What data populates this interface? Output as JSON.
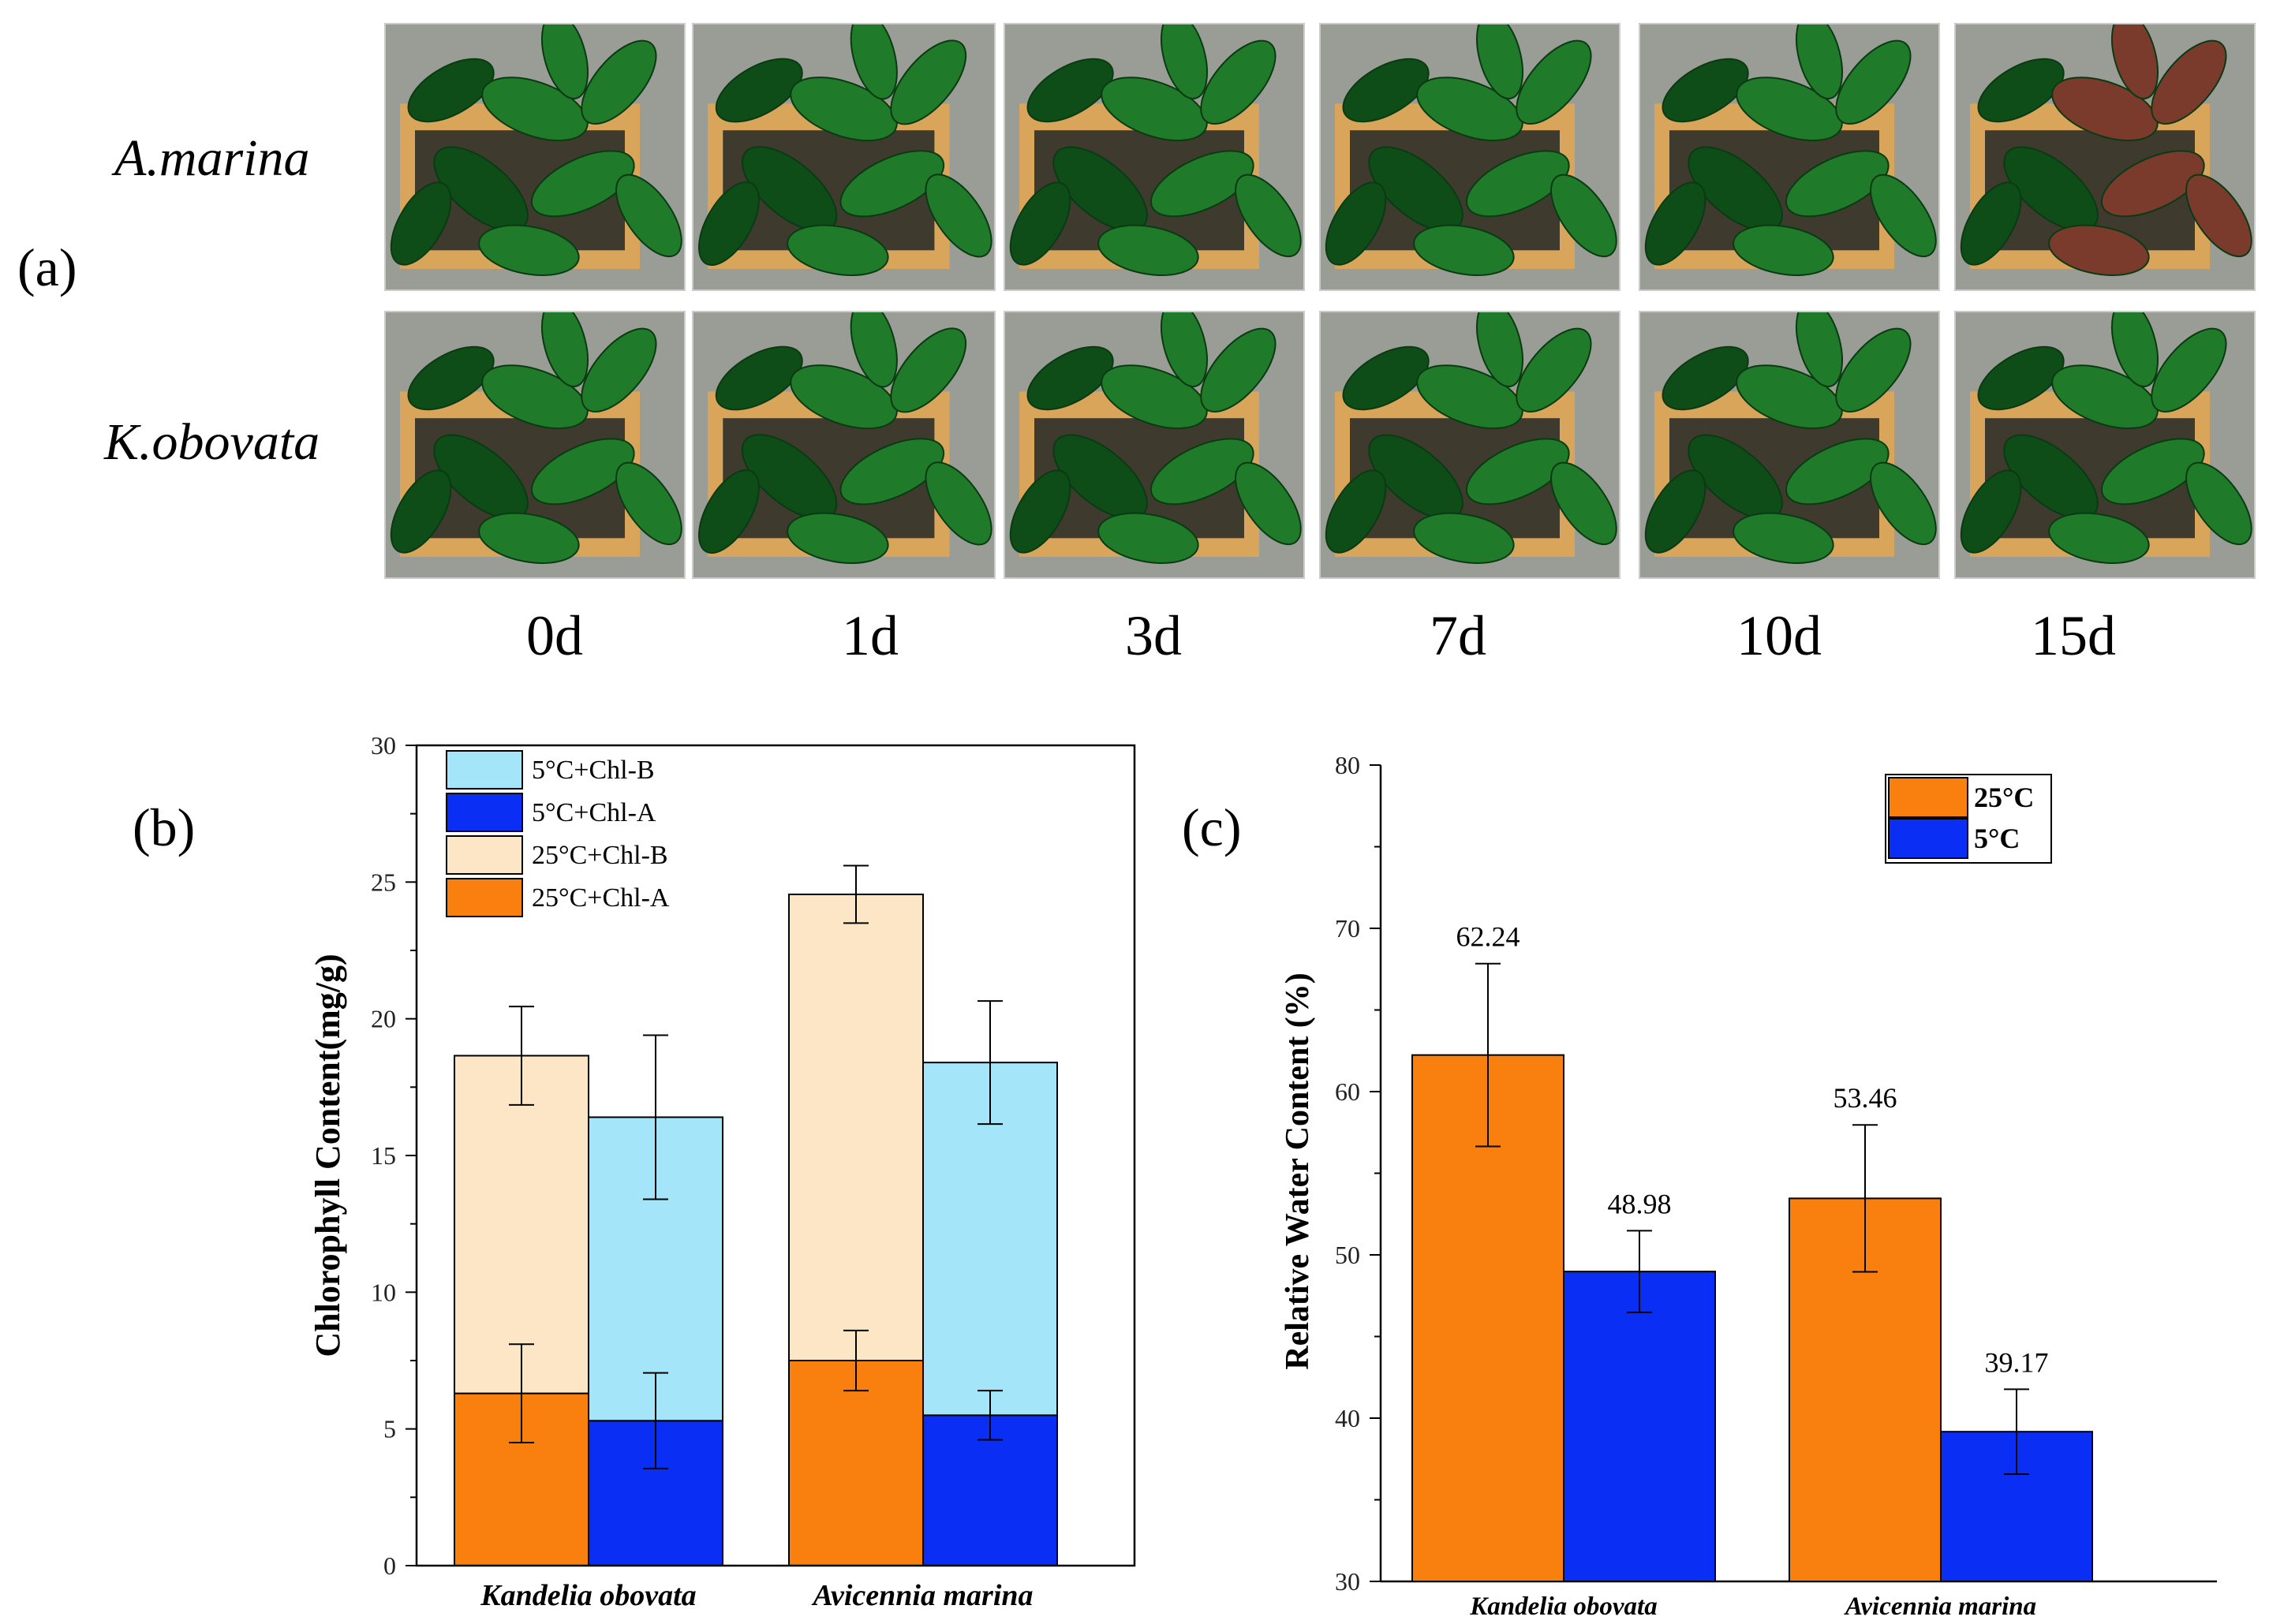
{
  "panel_a": {
    "label": "(a)",
    "rows": [
      {
        "species": "A.marina",
        "tones": [
          "green",
          "green",
          "green",
          "green",
          "green",
          "red"
        ]
      },
      {
        "species": "K.obovata",
        "tones": [
          "green",
          "green",
          "green",
          "green",
          "green",
          "green"
        ]
      }
    ],
    "days": [
      "0d",
      "1d",
      "3d",
      "7d",
      "10d",
      "15d"
    ]
  },
  "colors": {
    "orange": "#f97f0f",
    "peach": "#fde6c6",
    "blue": "#0b2ef4",
    "light_blue": "#a5e5f9",
    "leaf": "#1f7a2a",
    "leaf_dark": "#0e4d17",
    "leaf_red": "#7a3a2c",
    "pot": "#d9a55a",
    "soil": "#3f3a2e",
    "wall": "#9a9c96"
  },
  "chart_data": [
    {
      "panel_label": "(b)",
      "type": "bar",
      "stacked": true,
      "categories": [
        "Kandelia obovata",
        "Avicennia marina"
      ],
      "ylabel": "Chlorophyll Content(mg/g)",
      "ylim": [
        0,
        30
      ],
      "yticks": [
        0,
        5,
        10,
        15,
        20,
        25,
        30
      ],
      "groups": [
        "25°C",
        "5°C"
      ],
      "series": [
        {
          "name": "25°C+Chl-A",
          "group": "25°C",
          "color": "#f97f0f",
          "values": [
            6.3,
            7.5
          ],
          "errors": [
            1.8,
            1.1
          ]
        },
        {
          "name": "25°C+Chl-B",
          "group": "25°C",
          "color": "#fde6c6",
          "values": [
            12.35,
            17.05
          ],
          "total_errors": [
            1.8,
            1.05
          ]
        },
        {
          "name": "5°C+Chl-A",
          "group": "5°C",
          "color": "#0b2ef4",
          "values": [
            5.3,
            5.5
          ],
          "errors": [
            1.75,
            0.9
          ]
        },
        {
          "name": "5°C+Chl-B",
          "group": "5°C",
          "color": "#a5e5f9",
          "values": [
            11.1,
            12.9
          ],
          "total_errors": [
            3.0,
            2.25
          ]
        }
      ],
      "legend": [
        "5°C+Chl-B",
        "5°C+Chl-A",
        "25°C+Chl-B",
        "25°C+Chl-A"
      ],
      "legend_position": "top-left"
    },
    {
      "panel_label": "(c)",
      "type": "bar",
      "categories": [
        "Kandelia obovata",
        "Avicennia marina"
      ],
      "ylabel": "Relative Water Content (%)",
      "ylim": [
        30,
        80
      ],
      "yticks": [
        30,
        40,
        50,
        60,
        70,
        80
      ],
      "series": [
        {
          "name": "25°C",
          "color": "#f97f0f",
          "values": [
            62.24,
            53.46
          ],
          "labels": [
            "62.24",
            "53.46"
          ],
          "errors": [
            5.6,
            4.5
          ]
        },
        {
          "name": "5°C",
          "color": "#0b2ef4",
          "values": [
            48.98,
            39.17
          ],
          "labels": [
            "48.98",
            "39.17"
          ],
          "errors": [
            2.5,
            2.6
          ]
        }
      ],
      "legend_position": "top-right"
    }
  ]
}
